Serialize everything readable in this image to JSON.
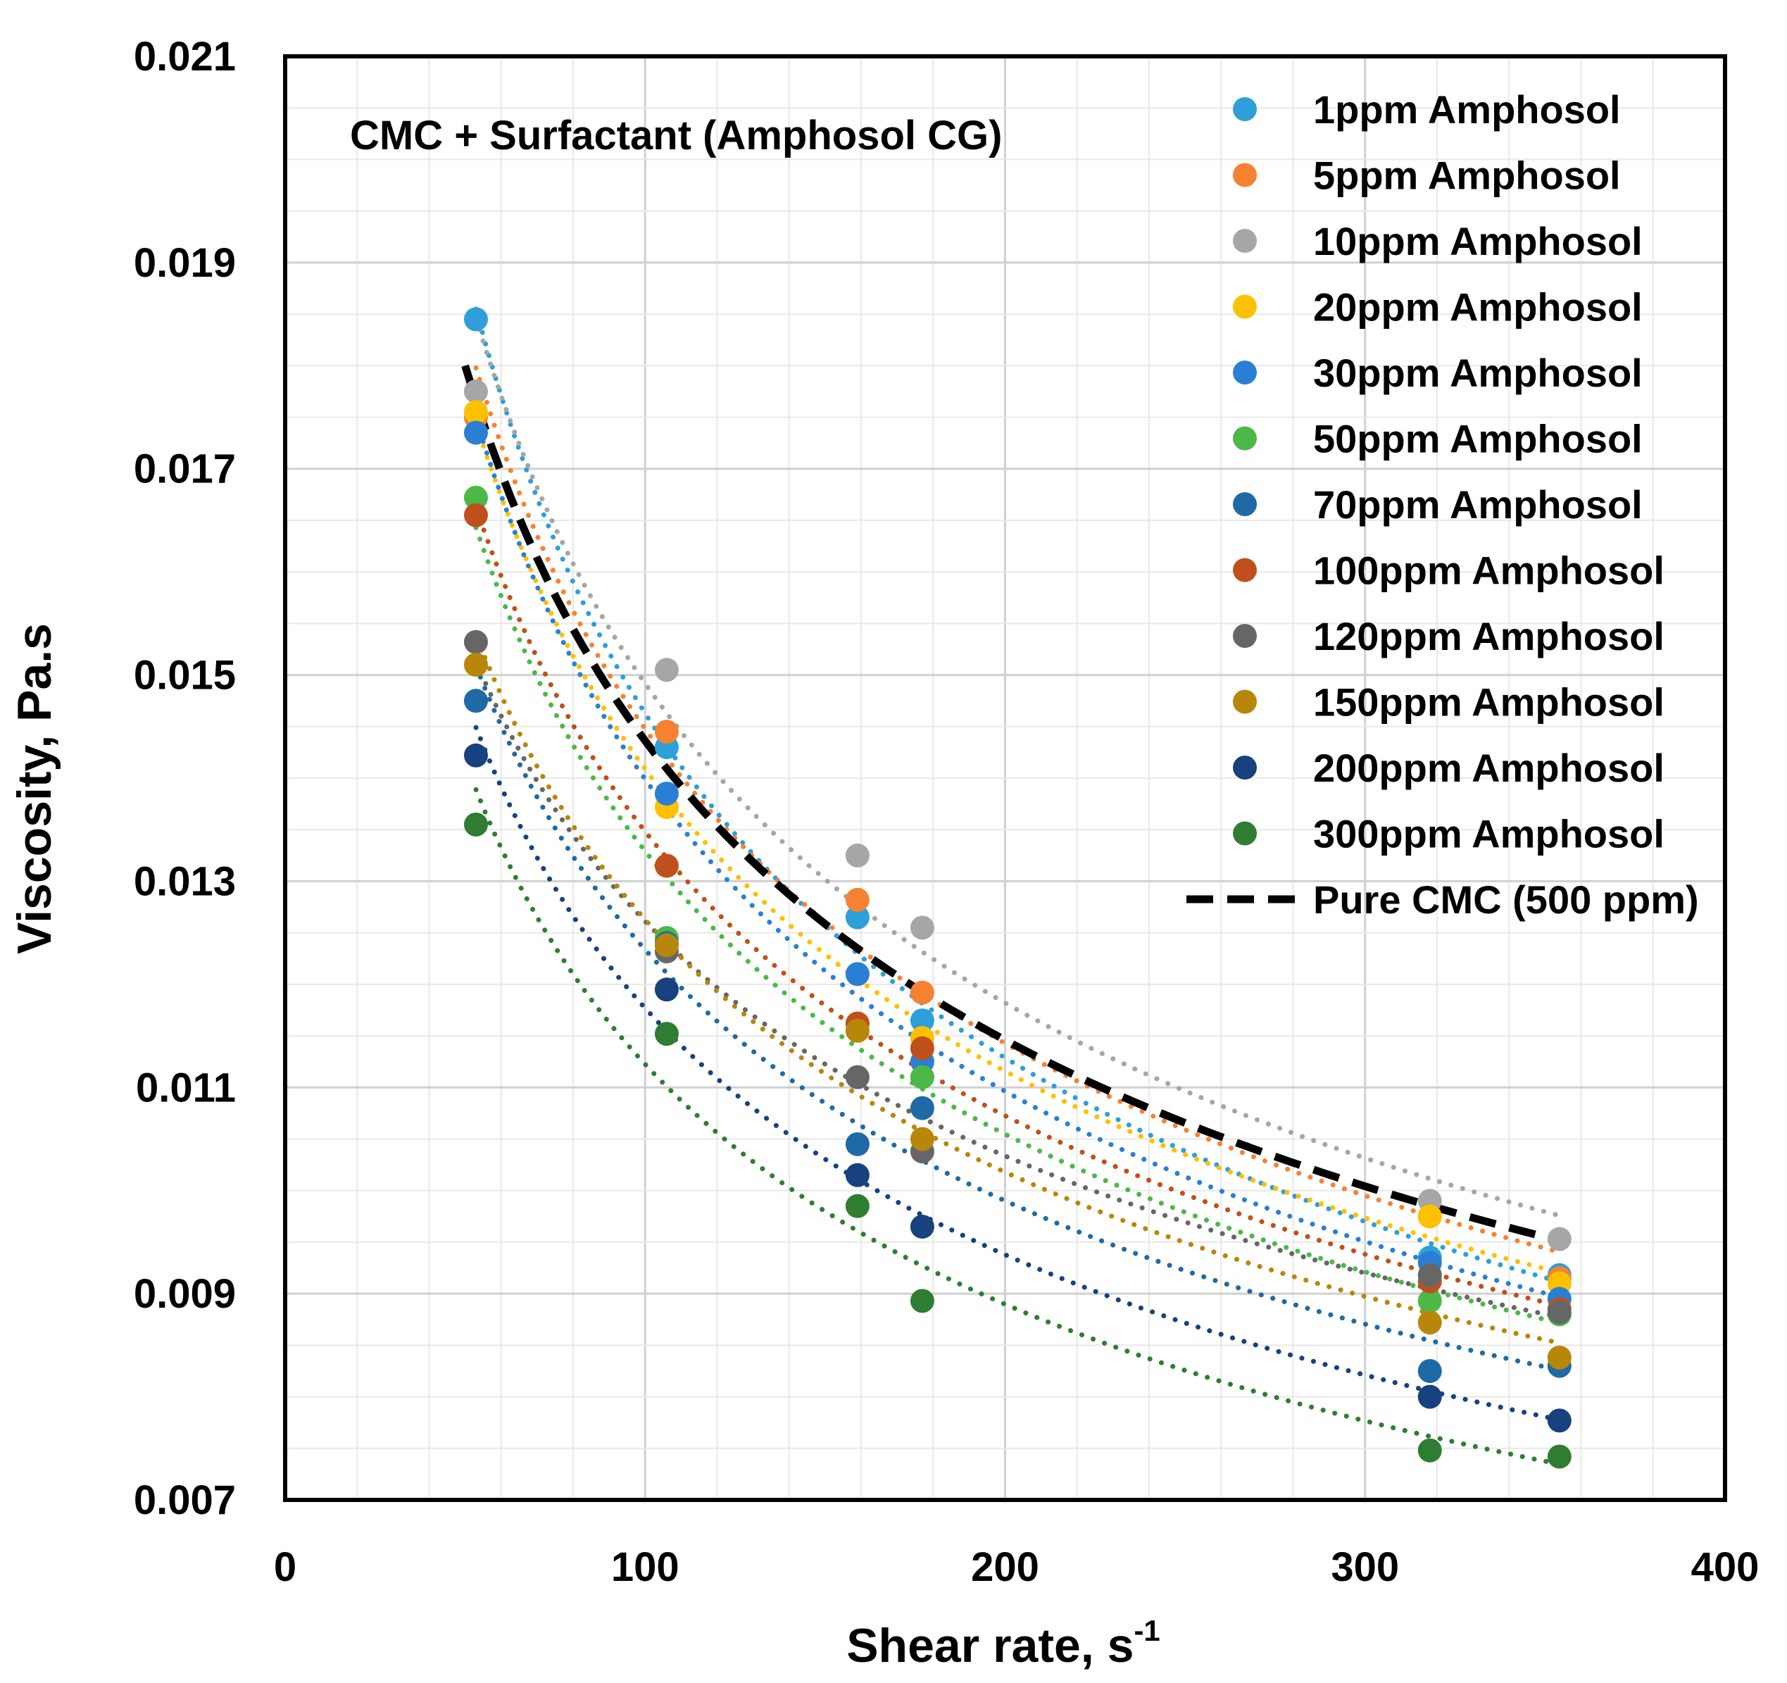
{
  "chart_data": {
    "type": "scatter",
    "annotation": "CMC + Surfactant (Amphosol CG)",
    "xlabel": "Shear rate, s",
    "xlabel_superscript": "-1",
    "ylabel": "Viscosity, Pa.s",
    "xlim": [
      0,
      400
    ],
    "ylim": [
      0.007,
      0.021
    ],
    "x_ticks": [
      0,
      100,
      200,
      300,
      400
    ],
    "x_tick_labels": [
      "0",
      "100",
      "200",
      "300",
      "400"
    ],
    "y_ticks": [
      0.007,
      0.009,
      0.011,
      0.013,
      0.015,
      0.017,
      0.019,
      0.021
    ],
    "y_tick_labels": [
      "0.007",
      "0.009",
      "0.011",
      "0.013",
      "0.015",
      "0.017",
      "0.019",
      "0.021"
    ],
    "grid": true,
    "legend_position": "top-right",
    "series": [
      {
        "name": "1ppm Amphosol",
        "color": "#2E9FD8",
        "trend": "dotted-power",
        "x": [
          53,
          106,
          159,
          177,
          318,
          354
        ],
        "y": [
          0.01845,
          0.0143,
          0.01265,
          0.01165,
          0.00935,
          0.00918
        ]
      },
      {
        "name": "5ppm Amphosol",
        "color": "#F58233",
        "trend": "dotted-power",
        "x": [
          53,
          106,
          159,
          177,
          318,
          354
        ],
        "y": [
          0.0175,
          0.01445,
          0.01282,
          0.01192,
          0.00975,
          0.00915
        ]
      },
      {
        "name": "10ppm Amphosol",
        "color": "#A6A6A6",
        "trend": "dotted-power",
        "x": [
          53,
          106,
          159,
          177,
          318,
          354
        ],
        "y": [
          0.01775,
          0.01505,
          0.01325,
          0.01255,
          0.0099,
          0.00953
        ]
      },
      {
        "name": "20ppm Amphosol",
        "color": "#FFC000",
        "trend": "dotted-power",
        "x": [
          53,
          106,
          159,
          177,
          318,
          354
        ],
        "y": [
          0.01755,
          0.01372,
          0.0121,
          0.01148,
          0.00975,
          0.0091
        ]
      },
      {
        "name": "30ppm Amphosol",
        "color": "#2A7FD4",
        "trend": "dotted-power",
        "x": [
          53,
          106,
          159,
          177,
          318,
          354
        ],
        "y": [
          0.01735,
          0.01385,
          0.0121,
          0.01125,
          0.0093,
          0.00895
        ]
      },
      {
        "name": "50ppm Amphosol",
        "color": "#4CB848",
        "trend": "dotted-power",
        "x": [
          53,
          106,
          159,
          177,
          318,
          354
        ],
        "y": [
          0.01672,
          0.01245,
          0.01162,
          0.0111,
          0.00893,
          0.0088
        ]
      },
      {
        "name": "70ppm Amphosol",
        "color": "#1F6AA5",
        "trend": "dotted-power",
        "x": [
          53,
          106,
          159,
          177,
          318,
          354
        ],
        "y": [
          0.01475,
          0.0124,
          0.01045,
          0.0108,
          0.00825,
          0.0083
        ]
      },
      {
        "name": "100ppm Amphosol",
        "color": "#C0501B",
        "trend": "dotted-power",
        "x": [
          53,
          106,
          159,
          177,
          318,
          354
        ],
        "y": [
          0.01655,
          0.01315,
          0.01162,
          0.01138,
          0.00912,
          0.00885
        ]
      },
      {
        "name": "120ppm Amphosol",
        "color": "#666666",
        "trend": "dotted-power",
        "x": [
          53,
          106,
          159,
          177,
          318,
          354
        ],
        "y": [
          0.01532,
          0.01232,
          0.0111,
          0.01038,
          0.00918,
          0.00882
        ]
      },
      {
        "name": "150ppm Amphosol",
        "color": "#B8860B",
        "trend": "dotted-power",
        "x": [
          53,
          106,
          159,
          177,
          318,
          354
        ],
        "y": [
          0.0151,
          0.01238,
          0.01155,
          0.0105,
          0.00872,
          0.00838
        ]
      },
      {
        "name": "200ppm Amphosol",
        "color": "#17417F",
        "trend": "dotted-power",
        "x": [
          53,
          106,
          159,
          177,
          318,
          354
        ],
        "y": [
          0.01422,
          0.01195,
          0.01015,
          0.00965,
          0.008,
          0.00777
        ]
      },
      {
        "name": "300ppm Amphosol",
        "color": "#2E7D32",
        "trend": "dotted-power",
        "x": [
          53,
          106,
          159,
          177,
          318,
          354
        ],
        "y": [
          0.01355,
          0.01152,
          0.00985,
          0.00893,
          0.00748,
          0.00742
        ]
      },
      {
        "name": "Pure CMC (500 ppm)",
        "color": "#000000",
        "trend": "dashed-power",
        "markers": false,
        "x": [
          50,
          350
        ],
        "y": [
          0.018,
          0.00955
        ]
      }
    ]
  }
}
